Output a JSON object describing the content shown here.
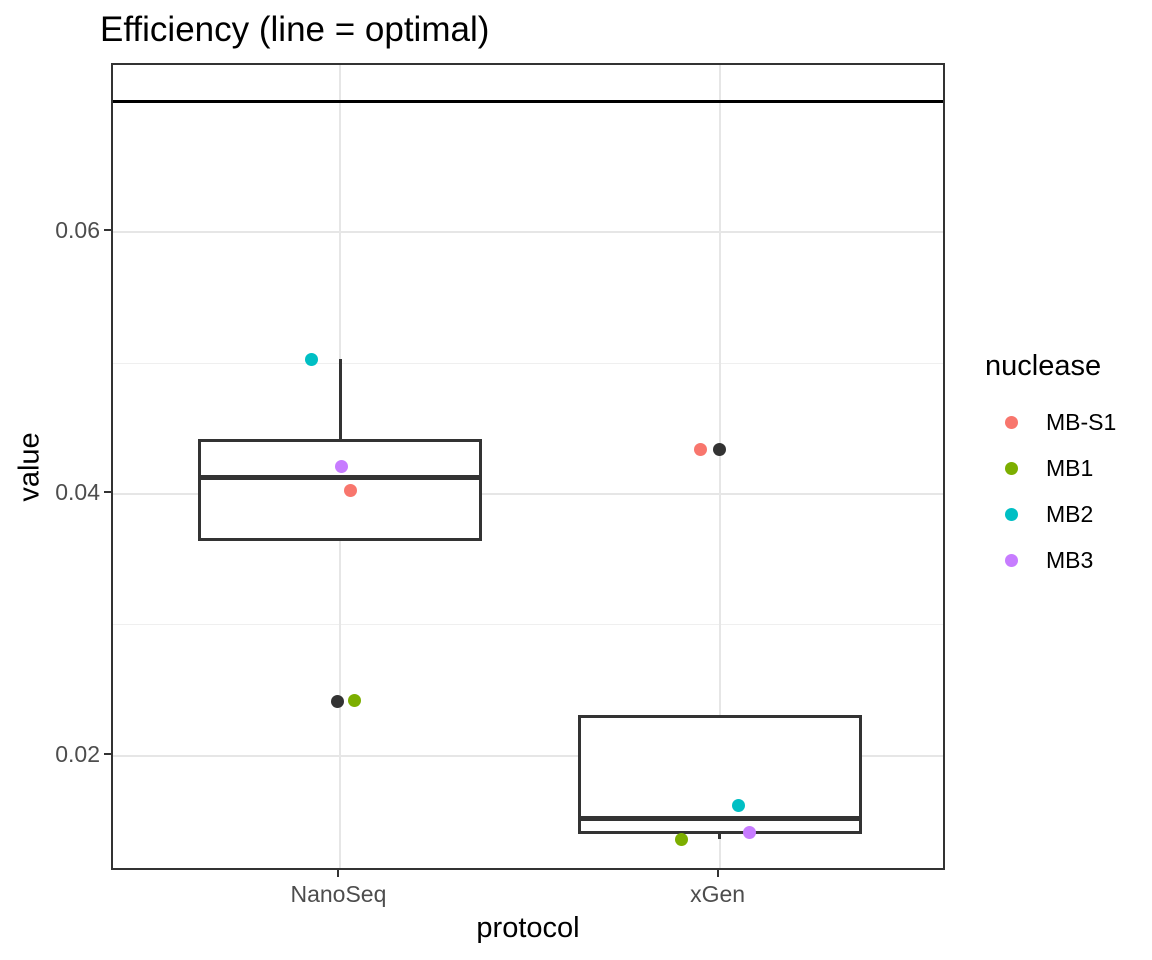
{
  "title": "Efficiency (line = optimal)",
  "chart_data": {
    "type": "boxplot",
    "title": "Efficiency (line = optimal)",
    "xlabel": "protocol",
    "ylabel": "value",
    "categories": [
      "NanoSeq",
      "xGen"
    ],
    "ylim": [
      0.0111,
      0.0728
    ],
    "yticks": [
      0.02,
      0.04,
      0.06
    ],
    "ytick_labels": [
      "0.02",
      "0.04",
      "0.06"
    ],
    "yminor_ticks": [
      0.03,
      0.05,
      0.07
    ],
    "grid": "major-and-minor",
    "reference_line": {
      "value": 0.07,
      "label": "optimal",
      "color": "#000000"
    },
    "boxes": [
      {
        "category": "NanoSeq",
        "q1": 0.0364,
        "median": 0.0413,
        "q3": 0.0442,
        "whisker_high": 0.0503,
        "whisker_low": null
      },
      {
        "category": "xGen",
        "q1": 0.014,
        "median": 0.0152,
        "q3": 0.0231,
        "whisker_high": null,
        "whisker_low": 0.0136
      }
    ],
    "points": [
      {
        "category": "NanoSeq",
        "nuclease": "MB2",
        "value": 0.0503,
        "dx": -29
      },
      {
        "category": "NanoSeq",
        "nuclease": "MB3",
        "value": 0.0421,
        "dx": 1
      },
      {
        "category": "NanoSeq",
        "nuclease": "MB-S1",
        "value": 0.0403,
        "dx": 10
      },
      {
        "category": "NanoSeq",
        "nuclease": null,
        "value": 0.0241,
        "dx": -3
      },
      {
        "category": "NanoSeq",
        "nuclease": "MB1",
        "value": 0.0242,
        "dx": 14
      },
      {
        "category": "xGen",
        "nuclease": "MB-S1",
        "value": 0.0434,
        "dx": -19
      },
      {
        "category": "xGen",
        "nuclease": null,
        "value": 0.0434,
        "dx": 0
      },
      {
        "category": "xGen",
        "nuclease": "MB2",
        "value": 0.0162,
        "dx": 19
      },
      {
        "category": "xGen",
        "nuclease": "MB3",
        "value": 0.0141,
        "dx": 30
      },
      {
        "category": "xGen",
        "nuclease": "MB1",
        "value": 0.0136,
        "dx": -38
      }
    ],
    "legend": {
      "title": "nuclease",
      "position": "right",
      "entries": [
        {
          "label": "MB-S1",
          "color": "#F8766D"
        },
        {
          "label": "MB1",
          "color": "#7CAE00"
        },
        {
          "label": "MB2",
          "color": "#00BFC4"
        },
        {
          "label": "MB3",
          "color": "#C77CFF"
        }
      ]
    },
    "colors": {
      "unlabeled_point": "#333333",
      "box_stroke": "#333333",
      "grid_major": "#e6e6e6",
      "grid_minor": "#efefef",
      "panel_border": "#333333",
      "axis_text": "#4d4d4d",
      "reference_line": "#000000"
    }
  }
}
